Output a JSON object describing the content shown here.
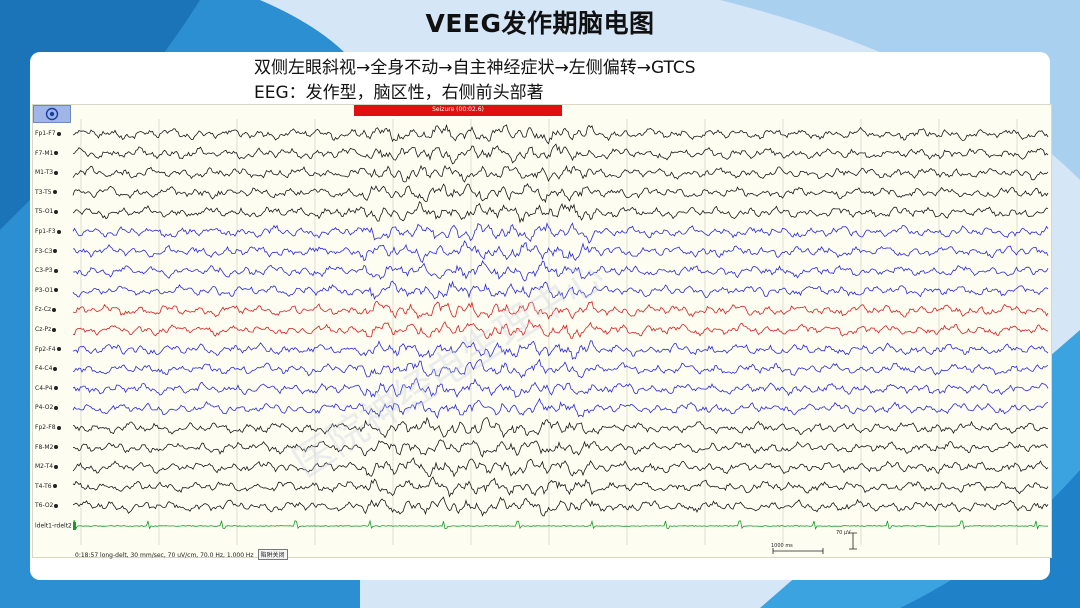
{
  "slide": {
    "title": "VEEG发作期脑电图",
    "subtitle_line1": "双侧左眼斜视→全身不动→自主神经症状→左侧偏转→GTCS",
    "subtitle_line2": "EEG：发作型，脑区性，右侧前头部著"
  },
  "colors": {
    "bg_blue": "#1f8fd6",
    "bg_light": "#cfe3f5",
    "trace_black": "#1a1a1a",
    "trace_blue": "#2b2bd6",
    "trace_red": "#d62020",
    "trace_green": "#1a9a2a",
    "seizure_red": "#e01010"
  },
  "eeg": {
    "toolbar_icon": "target-icon",
    "seizure_label": "Seizure (00:02.6)",
    "channels": [
      {
        "label": "Fp1-F7",
        "color": "black"
      },
      {
        "label": "F7-M1",
        "color": "black"
      },
      {
        "label": "M1-T3",
        "color": "black"
      },
      {
        "label": "T3-T5",
        "color": "black"
      },
      {
        "label": "T5-O1",
        "color": "black"
      },
      {
        "label": "Fp1-F3",
        "color": "blue"
      },
      {
        "label": "F3-C3",
        "color": "blue"
      },
      {
        "label": "C3-P3",
        "color": "blue"
      },
      {
        "label": "P3-O1",
        "color": "blue"
      },
      {
        "label": "Fz-Cz",
        "color": "red"
      },
      {
        "label": "Cz-Pz",
        "color": "red"
      },
      {
        "label": "Fp2-F4",
        "color": "blue"
      },
      {
        "label": "F4-C4",
        "color": "blue"
      },
      {
        "label": "C4-P4",
        "color": "blue"
      },
      {
        "label": "P4-O2",
        "color": "blue"
      },
      {
        "label": "Fp2-F8",
        "color": "black"
      },
      {
        "label": "F8-M2",
        "color": "black"
      },
      {
        "label": "M2-T4",
        "color": "black"
      },
      {
        "label": "T4-T6",
        "color": "black"
      },
      {
        "label": "T6-O2",
        "color": "black"
      },
      {
        "label": "ldelt1-rdelt2",
        "color": "green"
      }
    ],
    "status_text": "0:18:57 long-delt, 30 mm/sec, 70 uV/cm, 70.0 Hz, 1.000 Hz",
    "status_button": "陷阱关闭",
    "scale_amplitude": "70 µV",
    "scale_time": "1000 ms"
  },
  "watermark": "医院神经电生理中心"
}
